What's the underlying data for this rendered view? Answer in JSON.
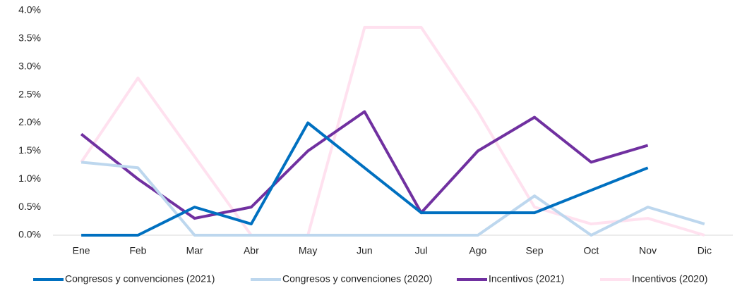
{
  "chart_data": {
    "type": "line",
    "categories": [
      "Ene",
      "Feb",
      "Mar",
      "Abr",
      "May",
      "Jun",
      "Jul",
      "Ago",
      "Sep",
      "Oct",
      "Nov",
      "Dic"
    ],
    "series": [
      {
        "name": "Congresos y convenciones (2021)",
        "color": "#0070c0",
        "values": [
          0,
          0,
          0.5,
          0.2,
          2.0,
          1.2,
          0.4,
          0.4,
          0.4,
          0.8,
          1.2,
          null
        ]
      },
      {
        "name": "Congresos y convenciones (2020)",
        "color": "#bdd7ee",
        "values": [
          1.3,
          1.2,
          0,
          0,
          0,
          0,
          0,
          0,
          0.7,
          0,
          0.5,
          0.2
        ]
      },
      {
        "name": "Incentivos (2021)",
        "color": "#7030a0",
        "values": [
          1.8,
          1.0,
          0.3,
          0.5,
          1.5,
          2.2,
          0.4,
          1.5,
          2.1,
          1.3,
          1.6,
          null
        ]
      },
      {
        "name": "Incentivos (2020)",
        "color": "#ffe1ef",
        "values": [
          1.3,
          2.8,
          1.4,
          0,
          0,
          3.7,
          3.7,
          2.2,
          0.5,
          0.2,
          0.3,
          0
        ]
      }
    ],
    "ylim": [
      0,
      4
    ],
    "yticks": [
      {
        "value": 0,
        "label": "0.0%"
      },
      {
        "value": 0.5,
        "label": "0.5%"
      },
      {
        "value": 1,
        "label": "1.0%"
      },
      {
        "value": 1.5,
        "label": "1.5%"
      },
      {
        "value": 2,
        "label": "2.0%"
      },
      {
        "value": 2.5,
        "label": "2.5%"
      },
      {
        "value": 3,
        "label": "3.0%"
      },
      {
        "value": 3.5,
        "label": "3.5%"
      },
      {
        "value": 4,
        "label": "4.0%"
      }
    ],
    "legend": "bottom"
  }
}
